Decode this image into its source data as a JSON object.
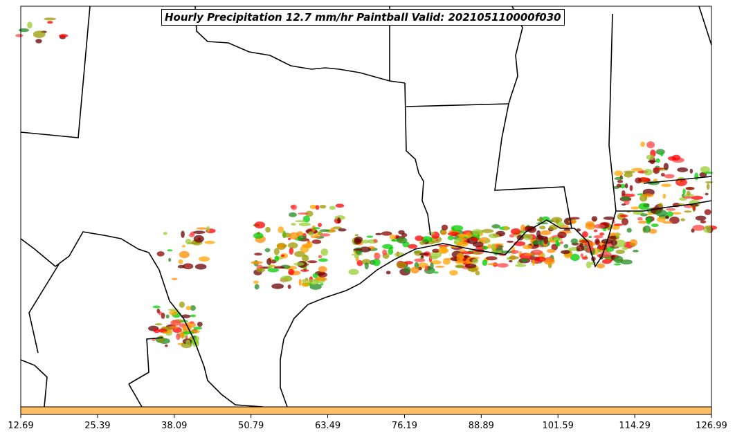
{
  "title": "Hourly Precipitation 12.7 mm/hr Paintball Valid: 202105110000f030",
  "colorbar": {
    "threshold_mm_hr": 12.7,
    "color": "#ffbf66",
    "tick_labels": [
      "12.69",
      "25.39",
      "38.09",
      "50.79",
      "63.49",
      "76.19",
      "88.89",
      "101.59",
      "114.29",
      "126.99"
    ]
  },
  "member_colors": [
    "#ff0000",
    "#ff8c00",
    "#00cc00",
    "#8b0000",
    "#228b22",
    "#999900",
    "#ff4444",
    "#ffa500",
    "#660000",
    "#9acd32"
  ]
}
